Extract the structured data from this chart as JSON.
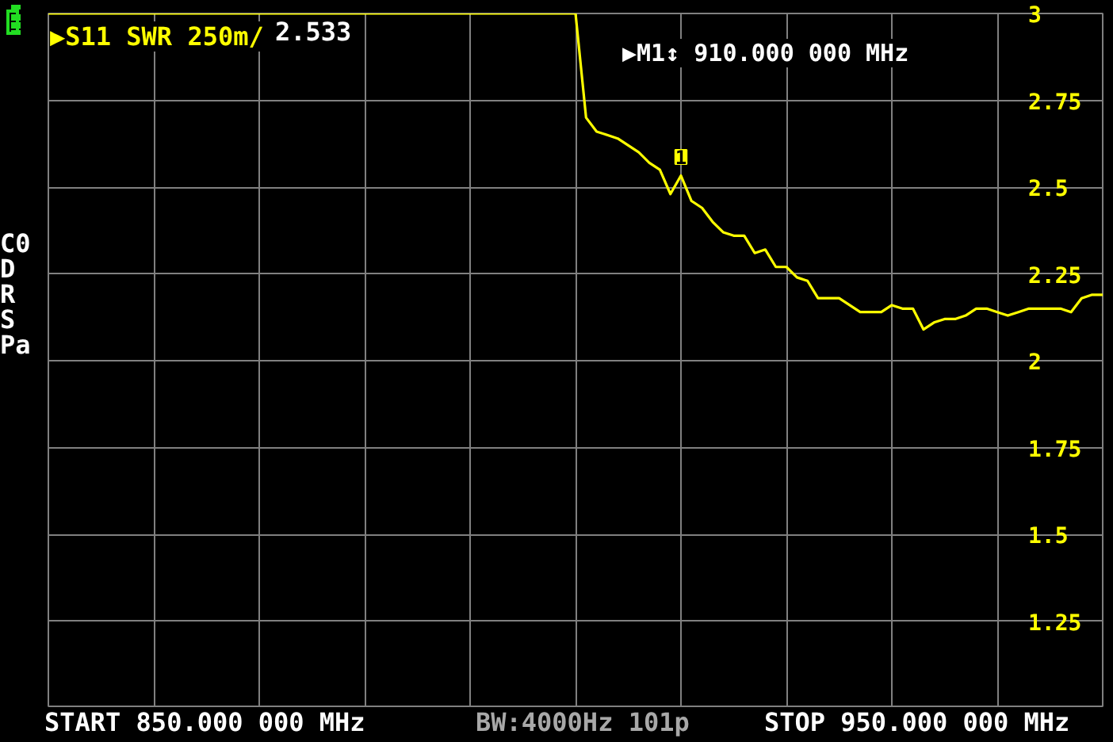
{
  "chart_data": {
    "type": "line",
    "title": "▶S11 SWR 250m/",
    "annotations": [
      "2.533",
      "▶M1↕ 910.000 000 MHz",
      "1",
      "C0",
      "D",
      "R",
      "S",
      "Pa",
      "START 850.000 000 MHz",
      "BW:4000Hz 101p",
      "STOP 950.000 000 MHz"
    ],
    "categories": [
      null,
      null,
      null,
      null,
      null,
      null,
      null,
      null,
      null,
      null,
      null,
      null,
      null,
      null,
      null,
      null,
      null,
      null,
      null,
      null,
      null,
      null,
      null,
      null,
      null,
      null,
      null,
      null,
      null,
      null,
      null,
      null,
      null,
      null,
      null,
      null,
      null,
      null,
      null,
      null,
      null,
      null,
      null,
      null,
      null,
      null,
      null,
      null,
      null,
      null,
      null,
      null,
      null,
      null,
      null,
      null,
      null,
      null,
      null,
      null,
      null,
      null,
      null,
      null,
      null,
      null,
      null,
      null,
      null,
      null,
      null,
      null,
      null,
      null,
      null,
      null,
      null,
      null,
      null,
      null,
      null,
      null,
      null,
      null,
      null,
      null,
      null,
      null,
      null,
      null,
      null,
      null,
      null,
      null,
      null,
      null,
      null,
      null,
      null,
      null,
      null
    ],
    "ylim": [
      1,
      3
    ],
    "yticks": [
      1.25,
      1.5,
      1.75,
      2,
      2.25,
      2.5,
      2.75,
      3
    ],
    "tick_labels": "y",
    "grid": true,
    "marker": "none",
    "line_style": "solid",
    "series": [
      {
        "color": "#ffff00",
        "values": [
          3,
          3,
          3,
          3,
          3,
          3,
          3,
          3,
          3,
          3,
          3,
          3,
          3,
          3,
          3,
          3,
          3,
          3,
          3,
          3,
          3,
          3,
          3,
          3,
          3,
          3,
          3,
          3,
          3,
          3,
          3,
          3,
          3,
          3,
          3,
          3,
          3,
          3,
          3,
          3,
          3,
          3,
          3,
          3,
          3,
          3,
          3,
          3,
          3,
          3,
          3,
          2.7,
          2.66,
          2.65,
          2.64,
          2.62,
          2.6,
          2.57,
          2.55,
          2.48,
          2.533,
          2.46,
          2.44,
          2.4,
          2.37,
          2.36,
          2.36,
          2.31,
          2.32,
          2.27,
          2.27,
          2.24,
          2.23,
          2.18,
          2.18,
          2.18,
          2.16,
          2.14,
          2.14,
          2.14,
          2.16,
          2.15,
          2.15,
          2.09,
          2.11,
          2.12,
          2.12,
          2.13,
          2.15,
          2.15,
          2.14,
          2.13,
          2.14,
          2.15,
          2.15,
          2.15,
          2.15,
          2.14,
          2.18,
          2.19,
          2.19
        ]
      }
    ]
  }
}
